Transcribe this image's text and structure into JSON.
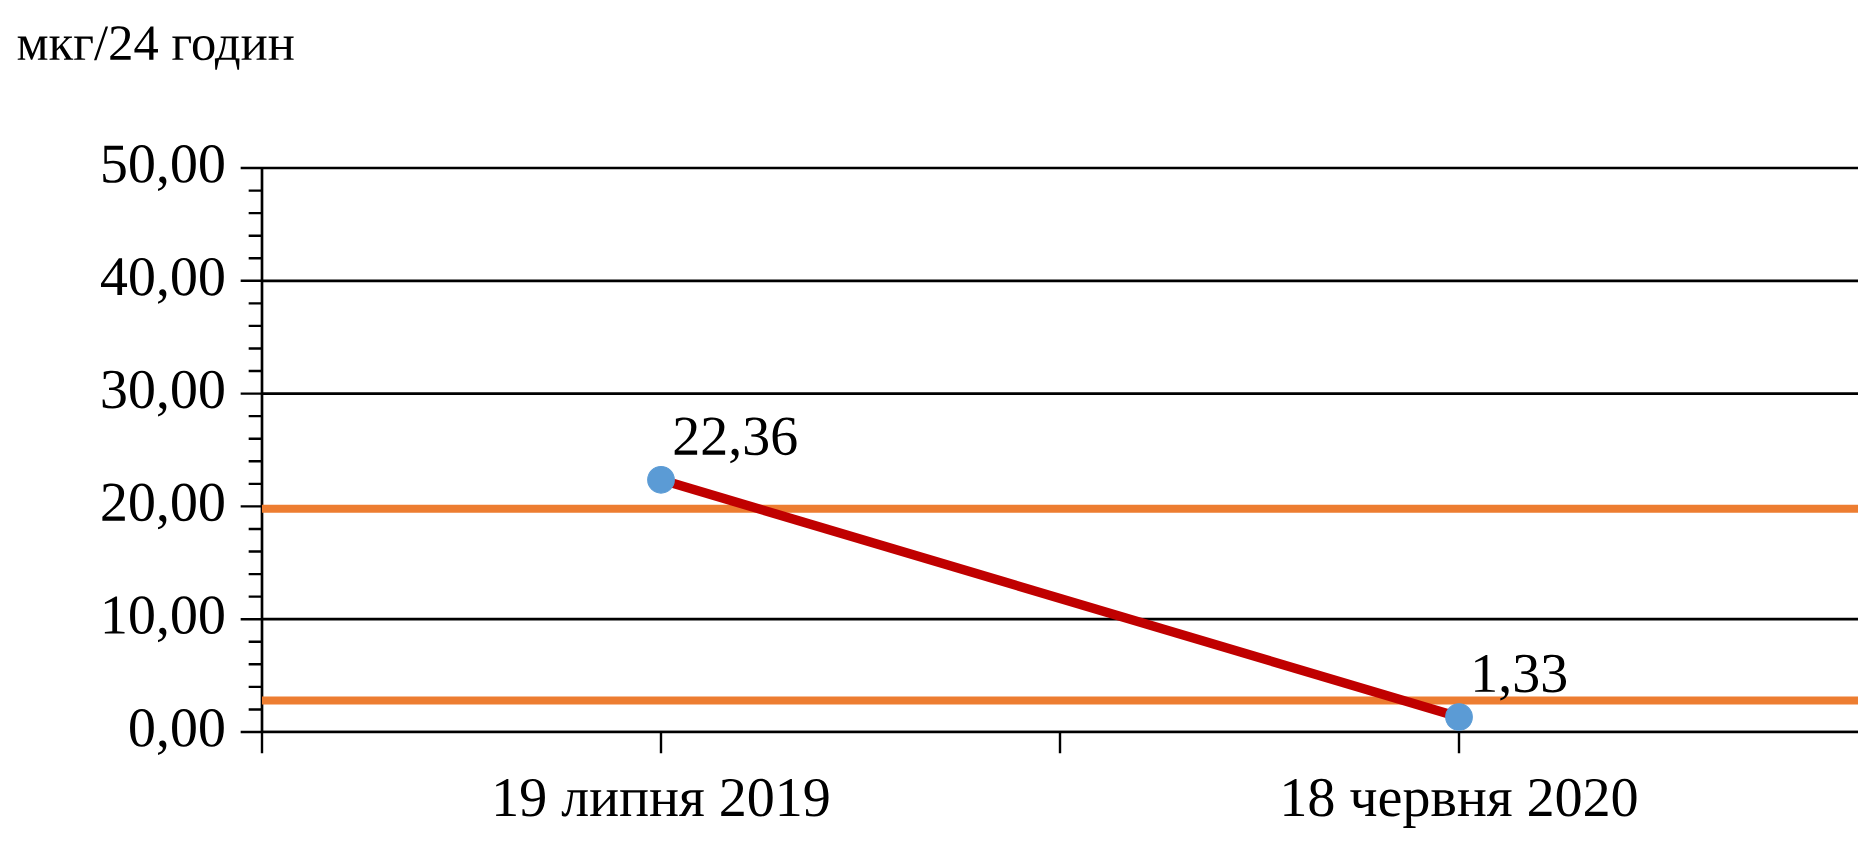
{
  "chart_data": {
    "type": "line",
    "ylabel": "мкг/24 годин",
    "categories": [
      "19 липня 2019",
      "18 червня 2020"
    ],
    "series": [
      {
        "color": "#c00000",
        "colors": [
          "#5b9bd5",
          "#5b9bd5"
        ],
        "values": [
          22.36,
          1.33
        ],
        "value_labels": [
          "22,36",
          "1,33"
        ]
      }
    ],
    "ylim": [
      0,
      50
    ],
    "yticks": [
      {
        "value": 0,
        "label": "0,00"
      },
      {
        "value": 10,
        "label": "10,00"
      },
      {
        "value": 20,
        "label": "20,00"
      },
      {
        "value": 30,
        "label": "30,00"
      },
      {
        "value": 40,
        "label": "40,00"
      },
      {
        "value": 50,
        "label": "50,00"
      }
    ],
    "ref_lines": [
      {
        "axis": "y",
        "value": 19.8,
        "color": "#ed7d31"
      },
      {
        "axis": "y",
        "value": 2.8,
        "color": "#ed7d31"
      }
    ],
    "grid": "y",
    "marker": "circle",
    "line_style": "solid"
  }
}
